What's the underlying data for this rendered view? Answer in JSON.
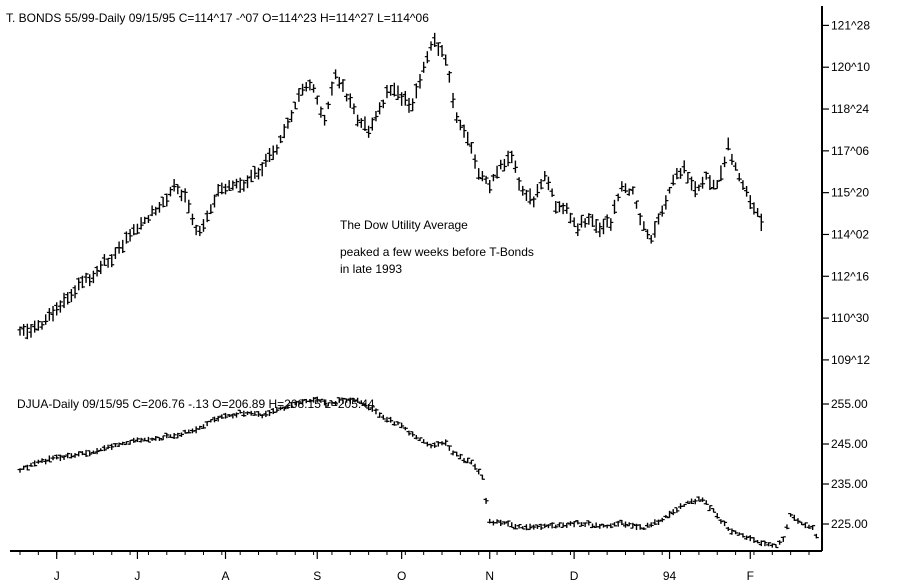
{
  "chart_data": [
    {
      "type": "ohlc",
      "header": "T. BONDS 55/99-Daily   09/15/95  C=114^17  -^07  O=114^23  H=114^27  L=114^06",
      "y_tick_labels": [
        "121^28",
        "120^10",
        "118^24",
        "117^06",
        "115^20",
        "114^02",
        "112^16",
        "110^30",
        "109^12"
      ],
      "y_tick_values": [
        121.875,
        120.3125,
        118.75,
        117.1875,
        115.625,
        114.0625,
        112.5,
        110.9375,
        109.375
      ],
      "ylim": [
        108.4,
        122.6
      ],
      "keypoints": [
        [
          0,
          110.6
        ],
        [
          4,
          110.5
        ],
        [
          8,
          111.0
        ],
        [
          14,
          111.9
        ],
        [
          20,
          112.6
        ],
        [
          26,
          113.3
        ],
        [
          30,
          114.1
        ],
        [
          34,
          114.6
        ],
        [
          38,
          115.1
        ],
        [
          42,
          115.8
        ],
        [
          45,
          115.5
        ],
        [
          48,
          114.2
        ],
        [
          50,
          114.4
        ],
        [
          54,
          115.6
        ],
        [
          58,
          115.9
        ],
        [
          62,
          116.0
        ],
        [
          66,
          116.6
        ],
        [
          70,
          117.3
        ],
        [
          74,
          118.5
        ],
        [
          77,
          119.6
        ],
        [
          80,
          119.5
        ],
        [
          83,
          118.3
        ],
        [
          86,
          120.1
        ],
        [
          89,
          119.2
        ],
        [
          92,
          118.5
        ],
        [
          95,
          117.9
        ],
        [
          98,
          118.7
        ],
        [
          101,
          119.6
        ],
        [
          104,
          119.2
        ],
        [
          107,
          118.9
        ],
        [
          110,
          120.3
        ],
        [
          113,
          121.3
        ],
        [
          116,
          120.6
        ],
        [
          119,
          118.4
        ],
        [
          122,
          117.7
        ],
        [
          125,
          116.3
        ],
        [
          128,
          115.9
        ],
        [
          131,
          116.6
        ],
        [
          134,
          116.9
        ],
        [
          137,
          115.6
        ],
        [
          140,
          115.4
        ],
        [
          143,
          116.3
        ],
        [
          146,
          115.2
        ],
        [
          149,
          114.9
        ],
        [
          152,
          114.3
        ],
        [
          155,
          114.7
        ],
        [
          158,
          114.2
        ],
        [
          161,
          114.5
        ],
        [
          164,
          115.9
        ],
        [
          167,
          115.6
        ],
        [
          170,
          114.4
        ],
        [
          172,
          113.9
        ],
        [
          175,
          114.9
        ],
        [
          178,
          116.0
        ],
        [
          181,
          116.5
        ],
        [
          184,
          115.7
        ],
        [
          187,
          116.2
        ],
        [
          190,
          115.9
        ],
        [
          193,
          117.3
        ],
        [
          196,
          116.2
        ],
        [
          199,
          115.3
        ],
        [
          202,
          114.5
        ]
      ],
      "last_bar": {
        "open": 114.72,
        "high": 114.84,
        "low": 114.19,
        "close": 114.53
      }
    },
    {
      "type": "ohlc",
      "header": "DJUA-Daily   09/15/95  C=206.76   -.13  O=206.89  H=208.15   L=205.44",
      "y_tick_labels": [
        "255.00",
        "245.00",
        "235.00",
        "225.00"
      ],
      "y_tick_values": [
        255,
        245,
        235,
        225
      ],
      "ylim": [
        218.5,
        258.5
      ],
      "keypoints": [
        [
          0,
          238.5
        ],
        [
          6,
          240.8
        ],
        [
          12,
          241.8
        ],
        [
          18,
          242.6
        ],
        [
          24,
          244.2
        ],
        [
          30,
          245.6
        ],
        [
          36,
          246.3
        ],
        [
          42,
          247.0
        ],
        [
          48,
          248.6
        ],
        [
          54,
          251.5
        ],
        [
          60,
          252.8
        ],
        [
          66,
          252.3
        ],
        [
          72,
          254.0
        ],
        [
          76,
          255.2
        ],
        [
          80,
          256.3
        ],
        [
          84,
          255.1
        ],
        [
          88,
          256.1
        ],
        [
          92,
          255.6
        ],
        [
          96,
          253.8
        ],
        [
          100,
          251.2
        ],
        [
          104,
          249.5
        ],
        [
          108,
          246.5
        ],
        [
          112,
          244.6
        ],
        [
          116,
          245.3
        ],
        [
          118,
          242.8
        ],
        [
          122,
          240.8
        ],
        [
          124,
          239.4
        ],
        [
          126,
          236.5
        ],
        [
          128,
          225.7
        ],
        [
          132,
          225.2
        ],
        [
          138,
          224.1
        ],
        [
          146,
          224.6
        ],
        [
          152,
          225.3
        ],
        [
          158,
          224.2
        ],
        [
          164,
          225.2
        ],
        [
          170,
          224.0
        ],
        [
          176,
          226.6
        ],
        [
          182,
          230.4
        ],
        [
          186,
          231.2
        ],
        [
          190,
          227.0
        ],
        [
          194,
          223.0
        ],
        [
          198,
          221.6
        ],
        [
          202,
          220.3
        ],
        [
          206,
          219.7
        ],
        [
          208,
          221.2
        ],
        [
          210,
          227.3
        ],
        [
          213,
          225.3
        ],
        [
          216,
          223.6
        ],
        [
          218,
          220.8
        ]
      ],
      "last_bar": {
        "open": 206.89,
        "high": 208.15,
        "low": 205.44,
        "close": 206.76
      }
    }
  ],
  "x_axis": {
    "tick_labels": [
      "J",
      "J",
      "A",
      "S",
      "O",
      "N",
      "D",
      "94",
      "F"
    ],
    "tick_index": [
      10,
      32,
      56,
      81,
      104,
      128,
      151,
      177,
      199
    ]
  },
  "annotation": {
    "line1": "The Dow Utility Average",
    "line2": "peaked a few weeks before T-Bonds",
    "line3": "in late 1993"
  }
}
